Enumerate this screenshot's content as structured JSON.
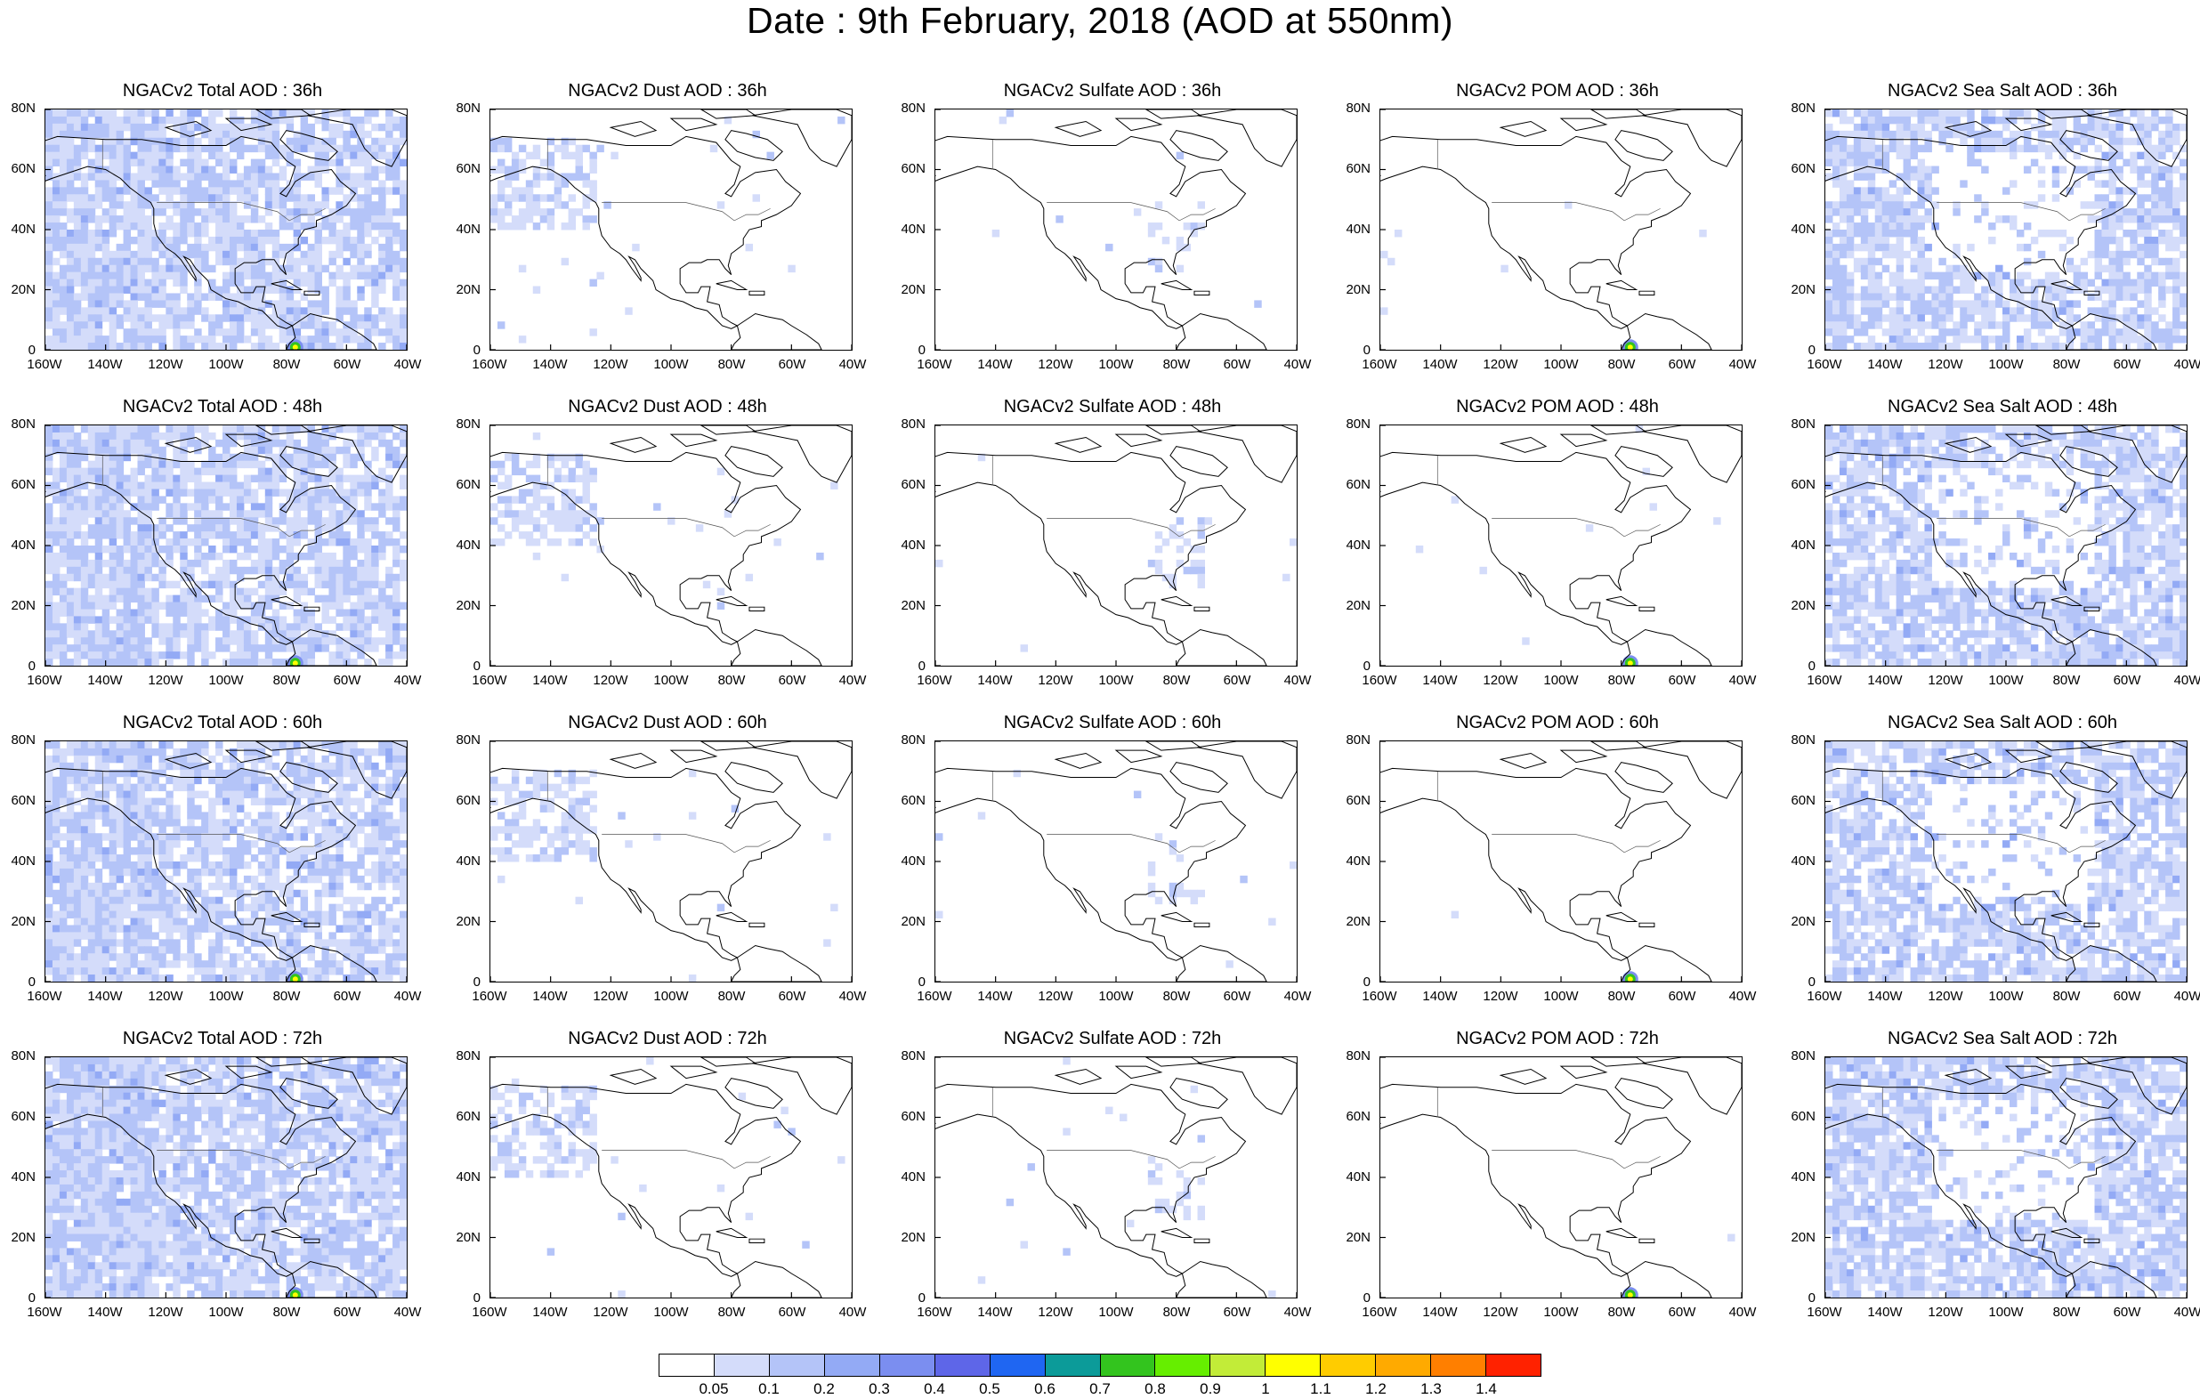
{
  "title": "Date : 9th February, 2018 (AOD at 550nm)",
  "lat_labels": [
    "80N",
    "60N",
    "40N",
    "20N",
    "0"
  ],
  "lon_labels": [
    "160W",
    "140W",
    "120W",
    "100W",
    "80W",
    "60W",
    "40W"
  ],
  "panels": [
    [
      {
        "title": "NGACv2 Total AOD : 36h",
        "species": "total",
        "hour": 36,
        "coverage": 0.85,
        "hotspot": true
      },
      {
        "title": "NGACv2 Dust AOD : 36h",
        "species": "dust",
        "hour": 36,
        "coverage": 0.08,
        "hotspot": false
      },
      {
        "title": "NGACv2 Sulfate AOD : 36h",
        "species": "sulfate",
        "hour": 36,
        "coverage": 0.05,
        "hotspot": false
      },
      {
        "title": "NGACv2 POM AOD : 36h",
        "species": "pom",
        "hour": 36,
        "coverage": 0.03,
        "hotspot": true
      },
      {
        "title": "NGACv2 Sea Salt AOD : 36h",
        "species": "seasalt",
        "hour": 36,
        "coverage": 0.55,
        "hotspot": false
      }
    ],
    [
      {
        "title": "NGACv2 Total AOD : 48h",
        "species": "total",
        "hour": 48,
        "coverage": 0.85,
        "hotspot": true
      },
      {
        "title": "NGACv2 Dust AOD : 48h",
        "species": "dust",
        "hour": 48,
        "coverage": 0.08,
        "hotspot": false
      },
      {
        "title": "NGACv2 Sulfate AOD : 48h",
        "species": "sulfate",
        "hour": 48,
        "coverage": 0.05,
        "hotspot": false
      },
      {
        "title": "NGACv2 POM AOD : 48h",
        "species": "pom",
        "hour": 48,
        "coverage": 0.03,
        "hotspot": true
      },
      {
        "title": "NGACv2 Sea Salt AOD : 48h",
        "species": "seasalt",
        "hour": 48,
        "coverage": 0.55,
        "hotspot": false
      }
    ],
    [
      {
        "title": "NGACv2 Total AOD : 60h",
        "species": "total",
        "hour": 60,
        "coverage": 0.85,
        "hotspot": true
      },
      {
        "title": "NGACv2 Dust AOD : 60h",
        "species": "dust",
        "hour": 60,
        "coverage": 0.1,
        "hotspot": false
      },
      {
        "title": "NGACv2 Sulfate AOD : 60h",
        "species": "sulfate",
        "hour": 60,
        "coverage": 0.06,
        "hotspot": false
      },
      {
        "title": "NGACv2 POM AOD : 60h",
        "species": "pom",
        "hour": 60,
        "coverage": 0.03,
        "hotspot": true
      },
      {
        "title": "NGACv2 Sea Salt AOD : 60h",
        "species": "seasalt",
        "hour": 60,
        "coverage": 0.5,
        "hotspot": false
      }
    ],
    [
      {
        "title": "NGACv2 Total AOD : 72h",
        "species": "total",
        "hour": 72,
        "coverage": 0.9,
        "hotspot": true
      },
      {
        "title": "NGACv2 Dust AOD : 72h",
        "species": "dust",
        "hour": 72,
        "coverage": 0.15,
        "hotspot": false
      },
      {
        "title": "NGACv2 Sulfate AOD : 72h",
        "species": "sulfate",
        "hour": 72,
        "coverage": 0.07,
        "hotspot": false
      },
      {
        "title": "NGACv2 POM AOD : 72h",
        "species": "pom",
        "hour": 72,
        "coverage": 0.03,
        "hotspot": true
      },
      {
        "title": "NGACv2 Sea Salt  AOD : 72h",
        "species": "seasalt",
        "hour": 72,
        "coverage": 0.6,
        "hotspot": false
      }
    ]
  ],
  "colorbar": {
    "colors": [
      "#ffffff",
      "#d4dcfa",
      "#b4c4f8",
      "#93aaf5",
      "#7b8ef0",
      "#5e66e8",
      "#1f66f2",
      "#0c9b99",
      "#33c41e",
      "#66ee00",
      "#c2ec38",
      "#ffff00",
      "#ffcc00",
      "#ffaa00",
      "#ff7f00",
      "#ff2200"
    ],
    "labels": [
      "0.05",
      "0.1",
      "0.2",
      "0.3",
      "0.4",
      "0.5",
      "0.6",
      "0.7",
      "0.8",
      "0.9",
      "1",
      "1.1",
      "1.2",
      "1.3",
      "1.4"
    ]
  }
}
